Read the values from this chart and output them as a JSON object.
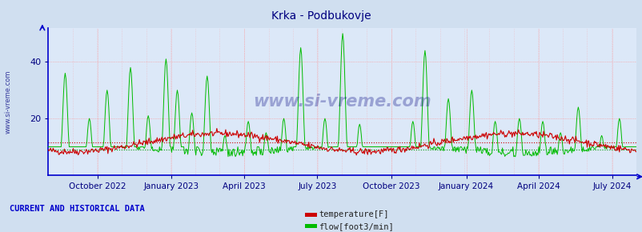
{
  "title": "Krka - Podbukovje",
  "title_color": "#000080",
  "title_fontsize": 10,
  "bg_color": "#d0dff0",
  "plot_bg_color": "#dce8f8",
  "xlabel": "",
  "ylabel": "",
  "ylim": [
    0,
    52
  ],
  "yticks": [
    20,
    40
  ],
  "grid_color_h": "#ff9090",
  "grid_color_v": "#ff9090",
  "temp_color": "#cc0000",
  "flow_color": "#00bb00",
  "temp_avg_line_color": "#cc0000",
  "flow_avg_line_color": "#009900",
  "axis_color": "#0000cc",
  "tick_color": "#000080",
  "tick_label_color": "#000080",
  "watermark": "www.si-vreme.com",
  "watermark_color": "#000080",
  "legend_temp_label": "temperature[F]",
  "legend_flow_label": "flow[foot3/min]",
  "legend_temp_color": "#cc0000",
  "legend_flow_color": "#00bb00",
  "footer_text": "CURRENT AND HISTORICAL DATA",
  "footer_color": "#0000cc",
  "date_labels": [
    "October 2022",
    "January 2023",
    "April 2023",
    "July 2023",
    "October 2023",
    "January 2024",
    "April 2024",
    "July 2024"
  ],
  "temp_avg": 11.5,
  "flow_avg": 9.0,
  "left_label": "www.si-vreme.com",
  "left_label_color": "#000080",
  "n_days": 730,
  "seed": 42
}
